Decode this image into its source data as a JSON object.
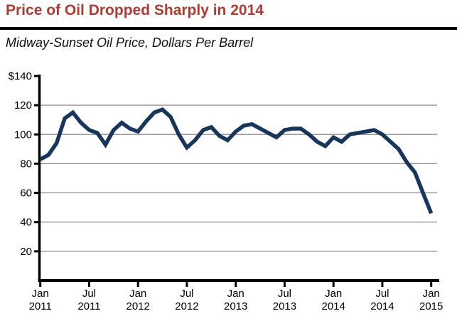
{
  "colors": {
    "title": "#b23a31",
    "line": "#17365d",
    "grid": "#8c8c8c",
    "axis": "#000000",
    "background": "#ffffff"
  },
  "chart_data": {
    "type": "line",
    "title": "Price of Oil Dropped Sharply in 2014",
    "subtitle": "Midway-Sunset Oil Price, Dollars Per Barrel",
    "ylabel": "Dollars Per Barrel",
    "ylim": [
      0,
      140
    ],
    "y_ticks": [
      20,
      40,
      60,
      80,
      100,
      120,
      140
    ],
    "y_tick_labels": [
      "20",
      "40",
      "60",
      "80",
      "100",
      "120",
      "$140"
    ],
    "grid": "horizontal gridlines at 20-unit intervals (20 through 120)",
    "legend_position": "none",
    "frequency": "monthly",
    "x_range": [
      "Jan 2011",
      "Jan 2015"
    ],
    "x_tick_months": [
      0,
      6,
      12,
      18,
      24,
      30,
      36,
      42,
      48
    ],
    "x_tick_labels": [
      [
        "Jan",
        "2011"
      ],
      [
        "Jul",
        "2011"
      ],
      [
        "Jan",
        "2012"
      ],
      [
        "Jul",
        "2012"
      ],
      [
        "Jan",
        "2013"
      ],
      [
        "Jul",
        "2013"
      ],
      [
        "Jan",
        "2014"
      ],
      [
        "Jul",
        "2014"
      ],
      [
        "Jan",
        "2015"
      ]
    ],
    "series": [
      {
        "name": "Midway-Sunset Oil Price, Dollars Per Barrel",
        "values": [
          83,
          86,
          94,
          111,
          115,
          108,
          103,
          101,
          93,
          103,
          108,
          104,
          102,
          109,
          115,
          117,
          112,
          100,
          91,
          96,
          103,
          105,
          99,
          96,
          102,
          106,
          107,
          104,
          101,
          98,
          103,
          104,
          104,
          100,
          95,
          92,
          98,
          95,
          100,
          101,
          102,
          103,
          100,
          95,
          90,
          81,
          74,
          60,
          46
        ]
      }
    ]
  }
}
